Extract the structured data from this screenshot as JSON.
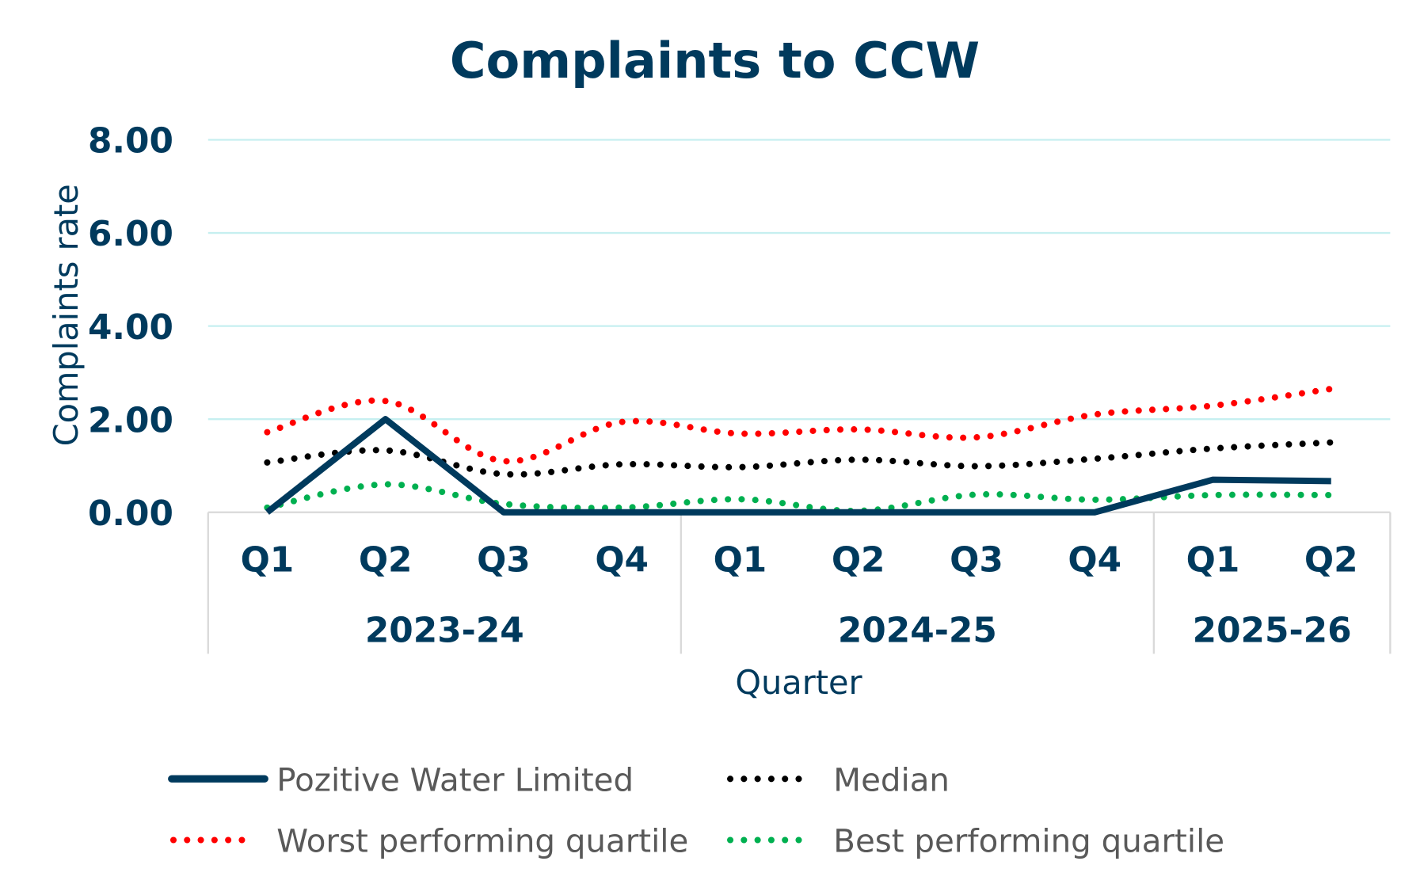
{
  "chart_data": {
    "type": "line",
    "title": "Complaints to CCW",
    "xlabel": "Quarter",
    "ylabel": "Complaints rate",
    "ylim": [
      0,
      8
    ],
    "yticks": [
      "0.00",
      "2.00",
      "4.00",
      "6.00",
      "8.00"
    ],
    "grid": true,
    "legend_position": "bottom",
    "categories": [
      "Q1",
      "Q2",
      "Q3",
      "Q4",
      "Q1",
      "Q2",
      "Q3",
      "Q4",
      "Q1",
      "Q2"
    ],
    "groups": [
      {
        "label": "2023-24",
        "span": 4
      },
      {
        "label": "2024-25",
        "span": 4
      },
      {
        "label": "2025-26",
        "span": 2
      }
    ],
    "series": [
      {
        "name": "Pozitive Water Limited",
        "style": "solid",
        "color": "#003a5d",
        "values": [
          0.0,
          2.0,
          0.0,
          0.0,
          0.0,
          0.0,
          0.0,
          0.0,
          0.7,
          0.67
        ]
      },
      {
        "name": "Median",
        "style": "dotted",
        "color": "#000000",
        "values": [
          1.07,
          1.33,
          0.82,
          1.03,
          0.97,
          1.13,
          0.99,
          1.15,
          1.37,
          1.5
        ]
      },
      {
        "name": "Worst performing quartile",
        "style": "dotted",
        "color": "#ff0000",
        "values": [
          1.72,
          2.39,
          1.1,
          1.94,
          1.69,
          1.78,
          1.61,
          2.1,
          2.29,
          2.65
        ]
      },
      {
        "name": "Best performing quartile",
        "style": "dotted",
        "color": "#00b050",
        "values": [
          0.1,
          0.6,
          0.18,
          0.1,
          0.28,
          0.03,
          0.38,
          0.27,
          0.37,
          0.37
        ]
      }
    ],
    "colors": {
      "text": "#003a5d",
      "grid": "#c6eff0",
      "axis": "#d9d9d9",
      "legend_text": "#595959"
    }
  }
}
